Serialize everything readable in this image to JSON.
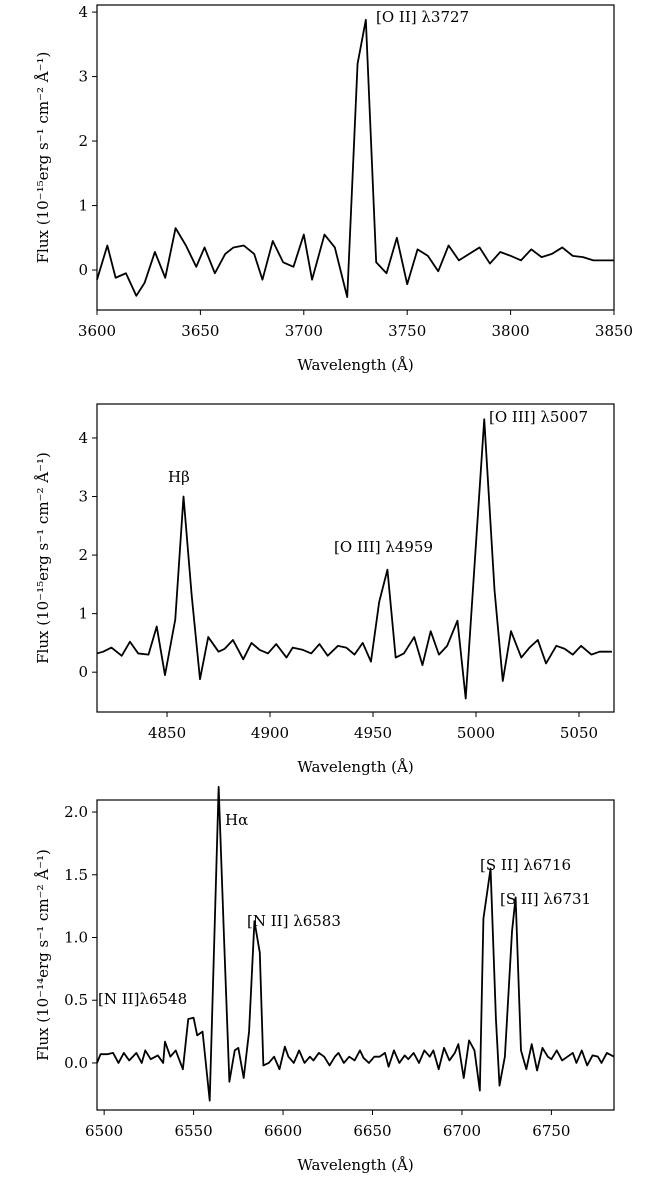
{
  "chart_data": [
    {
      "type": "line",
      "x_label": "Wavelength (Å)",
      "y_label": "Flux (10⁻¹⁵erg s⁻¹ cm⁻² Å⁻¹)",
      "color": "#000000",
      "xlim": [
        3600,
        3850
      ],
      "xticks": [
        3600,
        3650,
        3700,
        3750,
        3800,
        3850
      ],
      "ylim": [
        -0.62,
        4.11
      ],
      "yticks": [
        0,
        1,
        2,
        3,
        4
      ],
      "annotations": [
        "[O II] λ3727"
      ],
      "x": [
        3600,
        3605,
        3609,
        3614,
        3619,
        3623,
        3628,
        3633,
        3638,
        3643,
        3648,
        3652,
        3657,
        3662,
        3666,
        3671,
        3676,
        3680,
        3685,
        3690,
        3695,
        3700,
        3704,
        3710,
        3715,
        3721,
        3726,
        3730,
        3735,
        3740,
        3745,
        3750,
        3755,
        3760,
        3765,
        3770,
        3775,
        3780,
        3785,
        3790,
        3795,
        3800,
        3805,
        3810,
        3815,
        3820,
        3825,
        3830,
        3835,
        3840,
        3845,
        3850
      ],
      "values": [
        -0.15,
        0.38,
        -0.12,
        -0.05,
        -0.4,
        -0.2,
        0.28,
        -0.12,
        0.65,
        0.38,
        0.05,
        0.35,
        -0.05,
        0.25,
        0.35,
        0.38,
        0.25,
        -0.15,
        0.45,
        0.12,
        0.05,
        0.55,
        -0.15,
        0.55,
        0.35,
        -0.42,
        3.2,
        3.88,
        0.12,
        -0.05,
        0.5,
        -0.22,
        0.32,
        0.22,
        -0.02,
        0.38,
        0.15,
        0.25,
        0.35,
        0.1,
        0.28,
        0.22,
        0.15,
        0.32,
        0.2,
        0.25,
        0.35,
        0.22,
        0.2,
        0.15,
        0.15,
        0.15
      ]
    },
    {
      "type": "line",
      "x_label": "Wavelength (Å)",
      "y_label": "Flux (10⁻¹⁵erg s⁻¹ cm⁻² Å⁻¹)",
      "color": "#000000",
      "xlim": [
        4816,
        5067
      ],
      "xticks": [
        4850,
        4900,
        4950,
        5000,
        5050
      ],
      "ylim": [
        -0.68,
        4.58
      ],
      "yticks": [
        0,
        1,
        2,
        3,
        4
      ],
      "annotations": [
        "Hβ",
        "[O III] λ4959",
        "[O III] λ5007"
      ],
      "x": [
        4816,
        4819,
        4823,
        4828,
        4832,
        4836,
        4841,
        4845,
        4849,
        4854,
        4858,
        4862,
        4866,
        4870,
        4875,
        4878,
        4882,
        4887,
        4891,
        4895,
        4899,
        4903,
        4908,
        4911,
        4916,
        4920,
        4924,
        4928,
        4933,
        4937,
        4941,
        4945,
        4949,
        4953,
        4957,
        4961,
        4965,
        4970,
        4974,
        4978,
        4982,
        4986,
        4991,
        4995,
        5004,
        5009,
        5013,
        5017,
        5022,
        5026,
        5030,
        5034,
        5039,
        5043,
        5047,
        5051,
        5056,
        5060,
        5066
      ],
      "values": [
        0.32,
        0.35,
        0.42,
        0.28,
        0.52,
        0.32,
        0.3,
        0.78,
        -0.05,
        0.9,
        3.0,
        1.3,
        -0.12,
        0.6,
        0.35,
        0.4,
        0.55,
        0.22,
        0.5,
        0.38,
        0.32,
        0.48,
        0.25,
        0.42,
        0.38,
        0.32,
        0.48,
        0.28,
        0.45,
        0.42,
        0.3,
        0.5,
        0.18,
        1.2,
        1.75,
        0.25,
        0.32,
        0.6,
        0.12,
        0.7,
        0.3,
        0.45,
        0.88,
        -0.45,
        4.32,
        1.4,
        -0.15,
        0.7,
        0.25,
        0.42,
        0.55,
        0.15,
        0.45,
        0.4,
        0.3,
        0.45,
        0.3,
        0.35,
        0.35
      ]
    },
    {
      "type": "line",
      "x_label": "Wavelength (Å)",
      "y_label": "Flux (10⁻¹⁴erg s⁻¹ cm⁻² Å⁻¹)",
      "color": "#000000",
      "xlim": [
        6496,
        6785
      ],
      "xticks": [
        6500,
        6550,
        6600,
        6650,
        6700,
        6750
      ],
      "ylim": [
        -0.375,
        2.096
      ],
      "yticks": [
        {
          "value": 0,
          "label": "0.0"
        },
        0.5,
        {
          "value": 1,
          "label": "1.0"
        },
        1.5,
        {
          "value": 2,
          "label": "2.0"
        }
      ],
      "annotations": [
        "Hα",
        "[N II] λ6583",
        "[N II]λ6548",
        "[S II] λ6716",
        "[S II] λ6731"
      ],
      "x": [
        6496,
        6498,
        6502,
        6505,
        6508,
        6511,
        6514,
        6518,
        6521,
        6523,
        6526,
        6530,
        6533,
        6534,
        6537,
        6540,
        6544,
        6547,
        6550,
        6552,
        6555,
        6559,
        6564,
        6567,
        6570,
        6573,
        6575,
        6578,
        6581,
        6584,
        6587,
        6589,
        6592,
        6595,
        6598,
        6601,
        6603,
        6606,
        6609,
        6612,
        6615,
        6617,
        6620,
        6623,
        6626,
        6629,
        6631,
        6634,
        6637,
        6640,
        6643,
        6645,
        6648,
        6651,
        6654,
        6657,
        6659,
        6662,
        6665,
        6668,
        6670,
        6673,
        6676,
        6679,
        6682,
        6684,
        6687,
        6690,
        6693,
        6696,
        6698,
        6701,
        6704,
        6707,
        6710,
        6712,
        6716,
        6719,
        6721,
        6724,
        6728,
        6730,
        6733,
        6736,
        6739,
        6742,
        6745,
        6748,
        6750,
        6753,
        6756,
        6759,
        6762,
        6764,
        6767,
        6770,
        6773,
        6776,
        6778,
        6781,
        6785
      ],
      "values": [
        0.0,
        0.07,
        0.07,
        0.08,
        0.0,
        0.08,
        0.02,
        0.08,
        0.0,
        0.1,
        0.03,
        0.06,
        0.0,
        0.17,
        0.05,
        0.1,
        -0.05,
        0.35,
        0.36,
        0.22,
        0.25,
        -0.3,
        2.2,
        1.0,
        -0.15,
        0.1,
        0.12,
        -0.12,
        0.25,
        1.13,
        0.88,
        -0.02,
        0.0,
        0.05,
        -0.05,
        0.13,
        0.05,
        0.0,
        0.1,
        0.0,
        0.05,
        0.02,
        0.08,
        0.05,
        -0.02,
        0.05,
        0.08,
        0.0,
        0.05,
        0.02,
        0.1,
        0.04,
        0.0,
        0.05,
        0.05,
        0.08,
        -0.03,
        0.1,
        0.0,
        0.06,
        0.03,
        0.08,
        0.0,
        0.1,
        0.05,
        0.1,
        -0.05,
        0.12,
        0.02,
        0.08,
        0.15,
        -0.12,
        0.18,
        0.1,
        -0.22,
        1.15,
        1.55,
        0.35,
        -0.18,
        0.05,
        1.05,
        1.32,
        0.1,
        -0.05,
        0.15,
        -0.06,
        0.12,
        0.05,
        0.03,
        0.1,
        0.02,
        0.05,
        0.08,
        0.0,
        0.1,
        -0.02,
        0.06,
        0.05,
        0.0,
        0.08,
        0.05
      ]
    }
  ]
}
